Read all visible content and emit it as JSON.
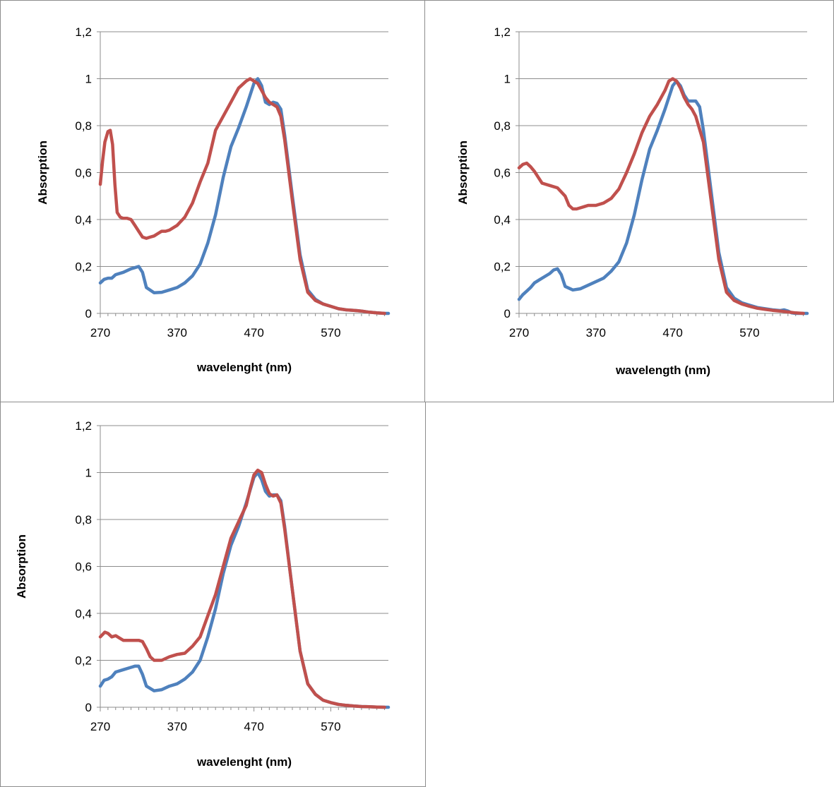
{
  "chart_data": [
    {
      "type": "line",
      "title": "",
      "xlabel": "wavelenght (nm)",
      "ylabel": "Absorption",
      "xlim": [
        270,
        645
      ],
      "ylim": [
        0,
        1.2
      ],
      "x_ticks": [
        "270",
        "370",
        "470",
        "570"
      ],
      "y_ticks": [
        "0",
        "0,2",
        "0,4",
        "0,6",
        "0,8",
        "1",
        "1,2"
      ],
      "grid": true,
      "legend": "none",
      "series": [
        {
          "color": "#4f81bd",
          "x": [
            270,
            275,
            280,
            285,
            290,
            300,
            310,
            315,
            320,
            325,
            330,
            340,
            350,
            360,
            370,
            380,
            390,
            400,
            410,
            420,
            430,
            440,
            450,
            460,
            470,
            475,
            480,
            485,
            490,
            495,
            500,
            505,
            510,
            520,
            530,
            540,
            550,
            560,
            570,
            580,
            590,
            600,
            610,
            620,
            630,
            640,
            645
          ],
          "y": [
            0.13,
            0.145,
            0.15,
            0.15,
            0.165,
            0.175,
            0.19,
            0.195,
            0.2,
            0.175,
            0.11,
            0.088,
            0.09,
            0.1,
            0.11,
            0.13,
            0.16,
            0.21,
            0.3,
            0.42,
            0.58,
            0.71,
            0.79,
            0.88,
            0.98,
            1.0,
            0.97,
            0.9,
            0.89,
            0.9,
            0.895,
            0.87,
            0.76,
            0.5,
            0.25,
            0.1,
            0.06,
            0.04,
            0.03,
            0.02,
            0.015,
            0.013,
            0.01,
            0.005,
            0.002,
            0.0,
            0.0
          ]
        },
        {
          "color": "#c0504d",
          "x": [
            270,
            273,
            276,
            280,
            283,
            286,
            289,
            292,
            296,
            300,
            305,
            310,
            315,
            320,
            325,
            330,
            335,
            340,
            345,
            350,
            355,
            360,
            370,
            380,
            390,
            400,
            410,
            420,
            430,
            440,
            450,
            460,
            465,
            470,
            475,
            480,
            485,
            490,
            495,
            500,
            505,
            510,
            520,
            530,
            540,
            550,
            560,
            570,
            580,
            590,
            600,
            610,
            620,
            630,
            640
          ],
          "y": [
            0.55,
            0.65,
            0.73,
            0.775,
            0.78,
            0.72,
            0.55,
            0.43,
            0.41,
            0.405,
            0.405,
            0.4,
            0.375,
            0.35,
            0.325,
            0.32,
            0.325,
            0.33,
            0.34,
            0.35,
            0.35,
            0.355,
            0.375,
            0.41,
            0.47,
            0.56,
            0.64,
            0.78,
            0.84,
            0.9,
            0.96,
            0.99,
            1.0,
            0.99,
            0.98,
            0.95,
            0.92,
            0.9,
            0.89,
            0.88,
            0.84,
            0.74,
            0.48,
            0.23,
            0.09,
            0.055,
            0.04,
            0.03,
            0.02,
            0.015,
            0.013,
            0.01,
            0.005,
            0.002,
            0.0
          ]
        }
      ]
    },
    {
      "type": "line",
      "title": "",
      "xlabel": "wavelength (nm)",
      "ylabel": "Absorption",
      "xlim": [
        270,
        645
      ],
      "ylim": [
        0,
        1.2
      ],
      "x_ticks": [
        "270",
        "370",
        "470",
        "570"
      ],
      "y_ticks": [
        "0",
        "0,2",
        "0,4",
        "0,6",
        "0,8",
        "1",
        "1,2"
      ],
      "grid": true,
      "legend": "none",
      "series": [
        {
          "color": "#4f81bd",
          "x": [
            270,
            275,
            280,
            285,
            290,
            300,
            310,
            315,
            320,
            325,
            330,
            340,
            350,
            360,
            370,
            380,
            390,
            400,
            410,
            420,
            430,
            440,
            450,
            460,
            470,
            475,
            480,
            485,
            490,
            495,
            500,
            505,
            510,
            520,
            530,
            540,
            550,
            560,
            570,
            580,
            590,
            600,
            610,
            615,
            620,
            625,
            630,
            640,
            645
          ],
          "y": [
            0.06,
            0.08,
            0.095,
            0.11,
            0.13,
            0.15,
            0.17,
            0.185,
            0.19,
            0.165,
            0.115,
            0.1,
            0.105,
            0.12,
            0.135,
            0.15,
            0.18,
            0.22,
            0.3,
            0.42,
            0.57,
            0.7,
            0.78,
            0.87,
            0.97,
            0.99,
            0.97,
            0.93,
            0.905,
            0.905,
            0.905,
            0.88,
            0.78,
            0.52,
            0.26,
            0.11,
            0.065,
            0.045,
            0.035,
            0.025,
            0.02,
            0.015,
            0.012,
            0.015,
            0.01,
            0.002,
            0.0,
            0.0,
            0.0
          ]
        },
        {
          "color": "#c0504d",
          "x": [
            270,
            275,
            280,
            285,
            290,
            295,
            300,
            310,
            320,
            330,
            335,
            340,
            345,
            350,
            355,
            360,
            370,
            380,
            390,
            400,
            410,
            420,
            430,
            440,
            450,
            460,
            465,
            470,
            475,
            480,
            485,
            490,
            495,
            500,
            510,
            520,
            530,
            540,
            550,
            560,
            570,
            580,
            590,
            600,
            610,
            620,
            630,
            640
          ],
          "y": [
            0.62,
            0.635,
            0.64,
            0.625,
            0.605,
            0.58,
            0.555,
            0.545,
            0.535,
            0.5,
            0.46,
            0.445,
            0.445,
            0.45,
            0.455,
            0.46,
            0.46,
            0.47,
            0.49,
            0.53,
            0.6,
            0.68,
            0.77,
            0.84,
            0.89,
            0.95,
            0.99,
            1.0,
            0.99,
            0.96,
            0.92,
            0.89,
            0.87,
            0.84,
            0.73,
            0.48,
            0.23,
            0.09,
            0.055,
            0.04,
            0.03,
            0.022,
            0.017,
            0.013,
            0.01,
            0.006,
            0.002,
            0.0
          ]
        }
      ]
    },
    {
      "type": "line",
      "title": "",
      "xlabel": "wavelenght (nm)",
      "ylabel": "Absorption",
      "xlim": [
        270,
        645
      ],
      "ylim": [
        0,
        1.2
      ],
      "x_ticks": [
        "270",
        "370",
        "470",
        "570"
      ],
      "y_ticks": [
        "0",
        "0,2",
        "0,4",
        "0,6",
        "0,8",
        "1",
        "1,2"
      ],
      "grid": true,
      "legend": "none",
      "series": [
        {
          "color": "#4f81bd",
          "x": [
            270,
            275,
            280,
            285,
            290,
            300,
            310,
            315,
            320,
            325,
            330,
            340,
            350,
            360,
            370,
            380,
            390,
            400,
            410,
            420,
            430,
            440,
            450,
            460,
            470,
            475,
            480,
            485,
            490,
            495,
            500,
            505,
            510,
            520,
            530,
            540,
            550,
            560,
            570,
            580,
            590,
            600,
            610,
            620,
            630,
            640,
            645
          ],
          "y": [
            0.09,
            0.115,
            0.12,
            0.13,
            0.15,
            0.16,
            0.17,
            0.175,
            0.175,
            0.14,
            0.09,
            0.07,
            0.075,
            0.09,
            0.1,
            0.12,
            0.15,
            0.2,
            0.3,
            0.42,
            0.57,
            0.69,
            0.77,
            0.87,
            0.98,
            1.0,
            0.97,
            0.92,
            0.9,
            0.905,
            0.905,
            0.88,
            0.77,
            0.5,
            0.24,
            0.1,
            0.055,
            0.03,
            0.02,
            0.012,
            0.008,
            0.005,
            0.003,
            0.002,
            0.001,
            0.0,
            0.0
          ]
        },
        {
          "color": "#c0504d",
          "x": [
            270,
            273,
            276,
            280,
            285,
            290,
            295,
            300,
            310,
            320,
            325,
            330,
            335,
            340,
            345,
            350,
            360,
            370,
            380,
            390,
            400,
            410,
            420,
            430,
            440,
            450,
            460,
            465,
            470,
            475,
            480,
            485,
            490,
            495,
            500,
            505,
            510,
            520,
            530,
            540,
            550,
            560,
            570,
            580,
            590,
            600,
            610,
            620,
            630,
            640
          ],
          "y": [
            0.3,
            0.31,
            0.32,
            0.315,
            0.3,
            0.305,
            0.295,
            0.285,
            0.285,
            0.285,
            0.28,
            0.25,
            0.215,
            0.2,
            0.2,
            0.2,
            0.215,
            0.225,
            0.23,
            0.26,
            0.3,
            0.39,
            0.48,
            0.6,
            0.72,
            0.79,
            0.86,
            0.93,
            0.99,
            1.01,
            1.0,
            0.95,
            0.91,
            0.9,
            0.905,
            0.87,
            0.76,
            0.5,
            0.24,
            0.1,
            0.055,
            0.03,
            0.02,
            0.012,
            0.008,
            0.005,
            0.003,
            0.002,
            0.001,
            0.0
          ]
        }
      ]
    }
  ]
}
